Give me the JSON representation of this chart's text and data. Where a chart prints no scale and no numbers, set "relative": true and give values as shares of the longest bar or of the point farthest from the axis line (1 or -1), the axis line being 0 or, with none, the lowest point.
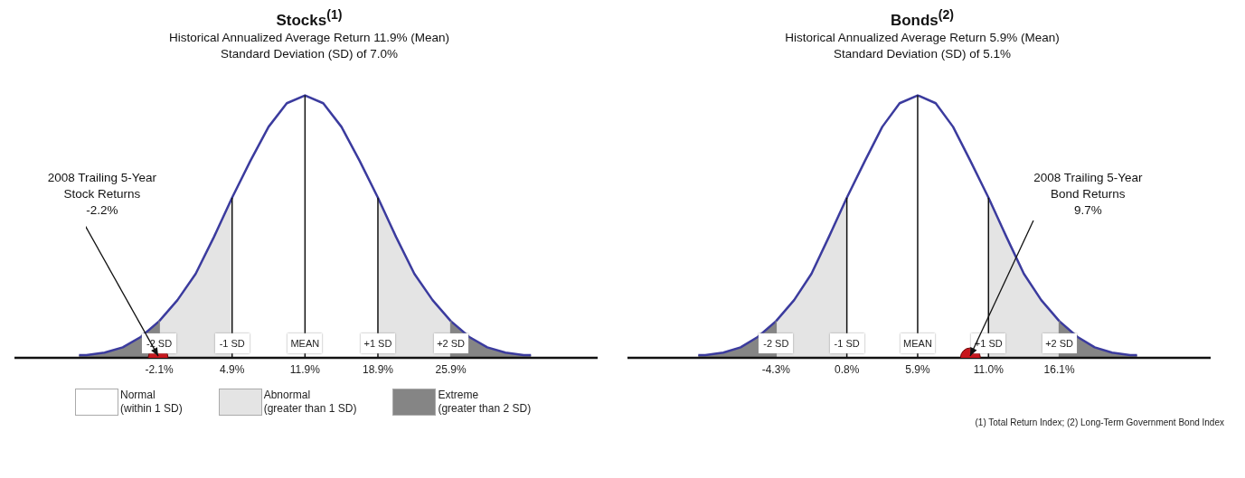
{
  "chart_data": [
    {
      "type": "area",
      "title": "Stocks$^{(1)}$",
      "subtitle": "Historical Annualized Average Return 11.9% (Mean)\nStandard Deviation (SD) of 7.0%",
      "relative": true,
      "legend": "bottom",
      "xlim": [
        -16,
        40
      ],
      "xticks": [
        {
          "value": -2.1,
          "label": "-2.1%"
        },
        {
          "value": 4.9,
          "label": "4.9%"
        },
        {
          "value": 11.9,
          "label": "11.9%"
        },
        {
          "value": 18.9,
          "label": "18.9%"
        },
        {
          "value": 25.9,
          "label": "25.9%"
        }
      ],
      "series": [
        {
          "name": "Normal\n(within 1 SD)",
          "color": "#ffffff",
          "x": [
            4.9,
            6.65,
            8.4,
            10.15,
            11.9,
            13.65,
            15.4,
            17.15,
            18.9
          ],
          "values": [
            0.61,
            0.75,
            0.88,
            0.97,
            1,
            0.97,
            0.88,
            0.75,
            0.61
          ]
        },
        {
          "name": "Abnormal\n(greater than 1 SD)",
          "color": "#e4e4e4",
          "x": [
            -2.1,
            -0.35,
            1.4,
            3.15,
            4.9,
            11.9,
            18.9,
            20.65,
            22.4,
            24.15,
            25.9
          ],
          "values": [
            0.14,
            0.22,
            0.32,
            0.46,
            0.61,
            null,
            0.61,
            0.46,
            0.32,
            0.22,
            0.14
          ]
        },
        {
          "name": "Extreme\n(greater than 2 SD)",
          "color": "#858585",
          "x": [
            -9.8,
            -9.1,
            -7.35,
            -5.6,
            -3.85,
            -2.1,
            11.9,
            25.9,
            27.65,
            29.4,
            31.15,
            32.9,
            33.6
          ],
          "values": [
            0.01,
            0.01,
            0.02,
            0.04,
            0.08,
            0.14,
            null,
            0.14,
            0.08,
            0.04,
            0.02,
            0.01,
            0.01
          ]
        },
        {
          "type": "line",
          "color": "#3b3b9e",
          "x": [
            -9.8,
            -9.1,
            -7.35,
            -5.6,
            -3.85,
            -2.1,
            -0.35,
            1.4,
            3.15,
            4.9,
            6.65,
            8.4,
            10.15,
            11.9,
            13.65,
            15.4,
            17.15,
            18.9,
            20.65,
            22.4,
            24.15,
            25.9,
            27.65,
            29.4,
            31.15,
            32.9,
            33.6
          ],
          "values": [
            0.01,
            0.01,
            0.02,
            0.04,
            0.08,
            0.14,
            0.22,
            0.32,
            0.46,
            0.61,
            0.75,
            0.88,
            0.97,
            1,
            0.97,
            0.88,
            0.75,
            0.61,
            0.46,
            0.32,
            0.22,
            0.14,
            0.08,
            0.04,
            0.02,
            0.01,
            0.01
          ]
        },
        {
          "type": "scatter",
          "color": "#c8161d",
          "marker": "circle",
          "x": [
            -2.2
          ],
          "values": [
            0
          ]
        }
      ],
      "ref_lines": [
        {
          "axis": "x",
          "value": -2.1,
          "label": "-2 SD",
          "color": "#858585"
        },
        {
          "axis": "x",
          "value": 4.9,
          "label": "-1 SD",
          "color": "#111111"
        },
        {
          "axis": "x",
          "value": 11.9,
          "label": "MEAN",
          "color": "#111111"
        },
        {
          "axis": "x",
          "value": 18.9,
          "label": "+1 SD",
          "color": "#111111"
        },
        {
          "axis": "x",
          "value": 25.9,
          "label": "+2 SD",
          "color": "#858585"
        }
      ],
      "annotations": [
        {
          "text": "2008 Trailing 5-Year\nStock Returns\n-2.2%",
          "x": -2.2,
          "y": 0
        }
      ]
    },
    {
      "type": "area",
      "title": "Bonds$^{(2)}$",
      "subtitle": "Historical Annualized Average Return 5.9% (Mean)\nStandard Deviation (SD) of 5.1%",
      "relative": true,
      "xlim": [
        -15,
        27
      ],
      "xticks": [
        {
          "value": -4.3,
          "label": "-4.3%"
        },
        {
          "value": 0.8,
          "label": "0.8%"
        },
        {
          "value": 5.9,
          "label": "5.9%"
        },
        {
          "value": 11,
          "label": "11.0%"
        },
        {
          "value": 16.1,
          "label": "16.1%"
        }
      ],
      "series": [
        {
          "color": "#ffffff",
          "x": [
            0.8,
            2.1,
            3.35,
            4.6,
            5.9,
            7.2,
            8.45,
            9.7,
            11
          ],
          "values": [
            0.61,
            0.75,
            0.88,
            0.97,
            1,
            0.97,
            0.88,
            0.75,
            0.61
          ]
        },
        {
          "color": "#e4e4e4",
          "x": [
            -4.3,
            -3.0,
            -1.75,
            -0.5,
            0.8,
            5.9,
            11,
            12.3,
            13.55,
            14.8,
            16.1
          ],
          "values": [
            0.14,
            0.22,
            0.32,
            0.46,
            0.61,
            null,
            0.61,
            0.46,
            0.32,
            0.22,
            0.14
          ]
        },
        {
          "color": "#858585",
          "x": [
            -9.9,
            -9.4,
            -8.1,
            -6.85,
            -5.6,
            -4.3,
            5.9,
            16.1,
            17.4,
            18.65,
            19.9,
            21.2,
            21.7
          ],
          "values": [
            0.01,
            0.01,
            0.02,
            0.04,
            0.08,
            0.14,
            null,
            0.14,
            0.08,
            0.04,
            0.02,
            0.01,
            0.01
          ]
        },
        {
          "type": "line",
          "color": "#3b3b9e",
          "x": [
            -9.9,
            -9.4,
            -8.1,
            -6.85,
            -5.6,
            -4.3,
            -3.0,
            -1.75,
            -0.5,
            0.8,
            2.1,
            3.35,
            4.6,
            5.9,
            7.2,
            8.45,
            9.7,
            11,
            12.3,
            13.55,
            14.8,
            16.1,
            17.4,
            18.65,
            19.9,
            21.2,
            21.7
          ],
          "values": [
            0.01,
            0.01,
            0.02,
            0.04,
            0.08,
            0.14,
            0.22,
            0.32,
            0.46,
            0.61,
            0.75,
            0.88,
            0.97,
            1,
            0.97,
            0.88,
            0.75,
            0.61,
            0.46,
            0.32,
            0.22,
            0.14,
            0.08,
            0.04,
            0.02,
            0.01,
            0.01
          ]
        },
        {
          "type": "scatter",
          "color": "#c8161d",
          "marker": "circle",
          "x": [
            9.7
          ],
          "values": [
            0
          ]
        }
      ],
      "ref_lines": [
        {
          "axis": "x",
          "value": -4.3,
          "label": "-2 SD",
          "color": "#858585"
        },
        {
          "axis": "x",
          "value": 0.8,
          "label": "-1 SD",
          "color": "#111111"
        },
        {
          "axis": "x",
          "value": 5.9,
          "label": "MEAN",
          "color": "#111111"
        },
        {
          "axis": "x",
          "value": 11,
          "label": "+1 SD",
          "color": "#111111"
        },
        {
          "axis": "x",
          "value": 16.1,
          "label": "+2 SD",
          "color": "#858585"
        }
      ],
      "annotations": [
        {
          "text": "2008 Trailing 5-Year\nBond Returns\n9.7%",
          "x": 9.7,
          "y": 0
        },
        "(1) Total Return Index; (2) Long-Term Government Bond Index"
      ]
    }
  ]
}
